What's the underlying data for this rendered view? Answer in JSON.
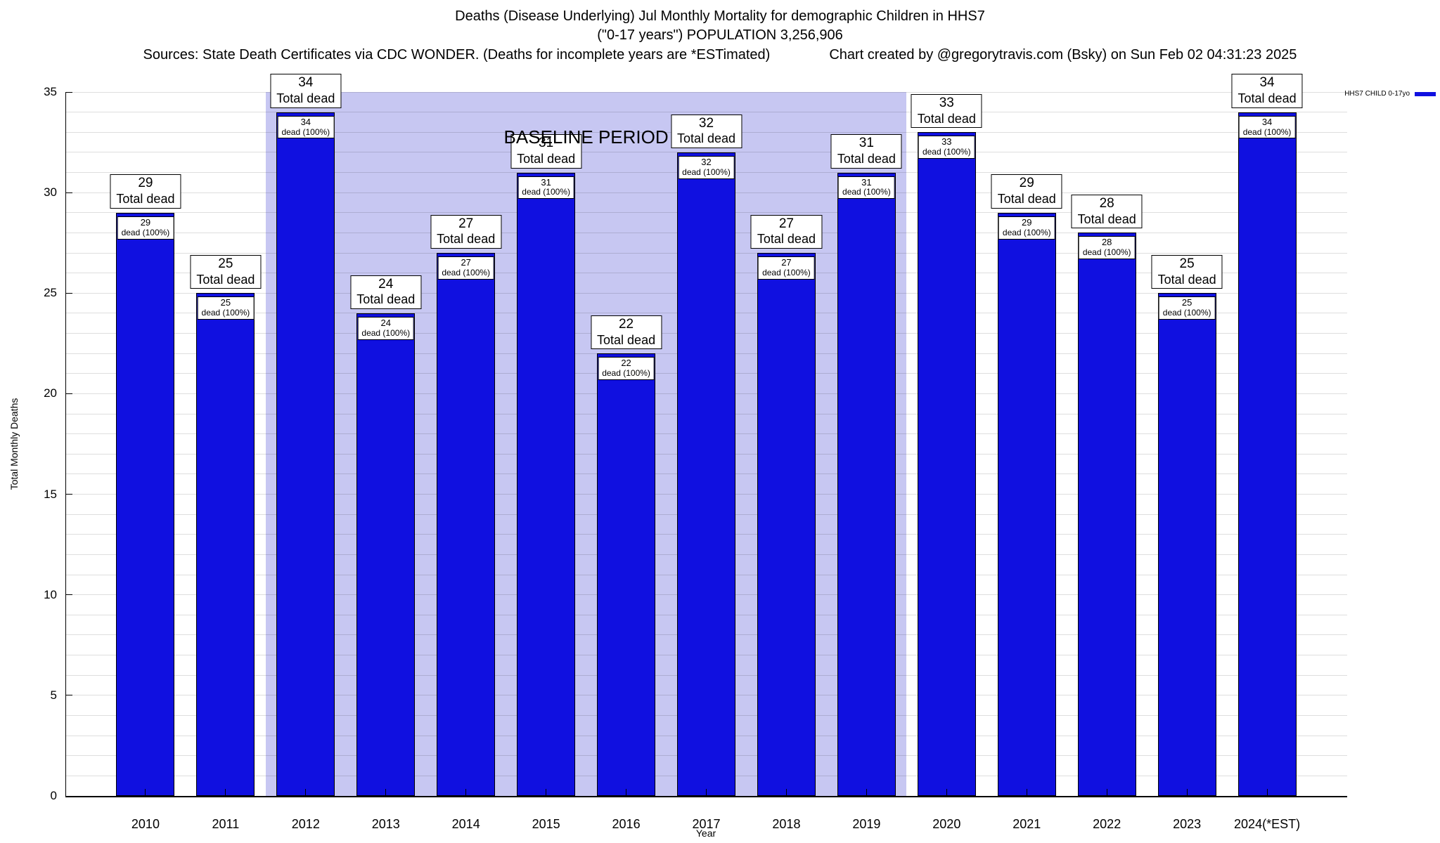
{
  "chart_data": {
    "type": "bar",
    "title": "Deaths (Disease Underlying) Jul Monthly Mortality for demographic Children in HHS7",
    "subtitle": "(\"0-17 years\") POPULATION 3,256,906",
    "source_note": "Sources: State Death Certificates via CDC WONDER. (Deaths for incomplete years are *ESTimated)",
    "credit_note": "Chart created by @gregorytravis.com (Bsky) on Sun Feb 02 04:31:23 2025",
    "xlabel": "Year",
    "ylabel": "Total Monthly Deaths",
    "ylim": [
      0,
      35
    ],
    "y_major_tick_step": 5,
    "y_minor_grid_step": 1,
    "grid": true,
    "categories": [
      "2010",
      "2011",
      "2012",
      "2013",
      "2014",
      "2015",
      "2016",
      "2017",
      "2018",
      "2019",
      "2020",
      "2021",
      "2022",
      "2023",
      "2024(*EST)"
    ],
    "values": [
      29,
      25,
      34,
      24,
      27,
      31,
      22,
      32,
      27,
      31,
      33,
      29,
      28,
      25,
      34
    ],
    "bar_label_title": "Total dead",
    "bar_label_sub": "dead (100%)",
    "bar_color": "#1010e0",
    "baseline_band": {
      "label": "BASELINE PERIOD",
      "start_category": "2012",
      "end_category": "2019",
      "color": "#c7c7f2"
    },
    "legend": {
      "label": "HHS7 CHILD 0-17yo",
      "color": "#1010e0",
      "position": "top-right"
    }
  }
}
